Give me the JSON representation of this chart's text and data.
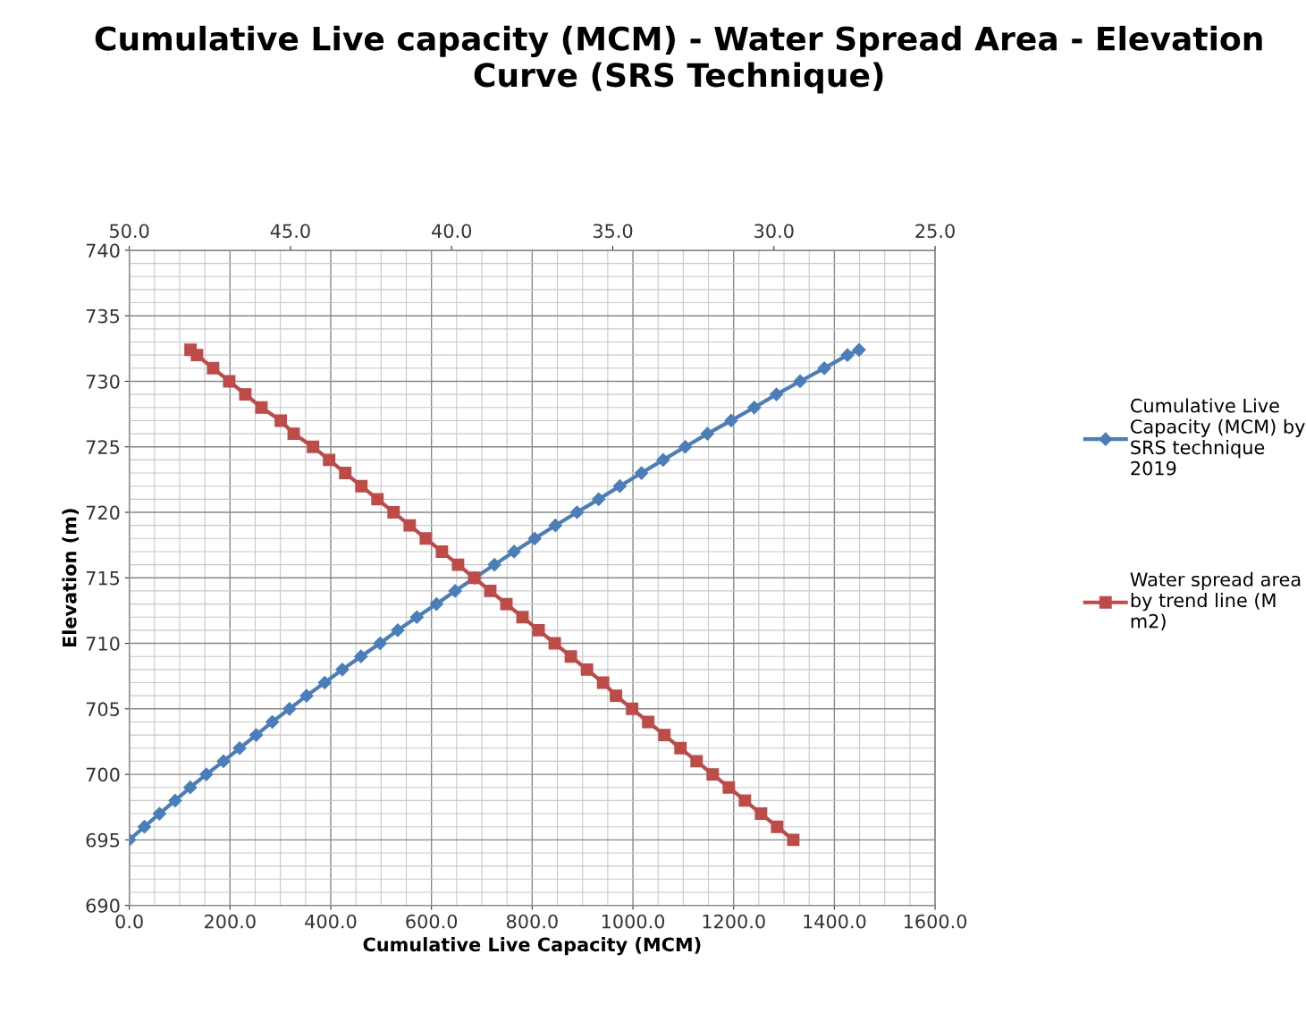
{
  "chart_data": {
    "type": "line",
    "title": "Cumulative Live capacity (MCM) - Water Spread Area - Elevation Curve (SRS Technique)",
    "xlabel": "Cumulative Live Capacity (MCM)",
    "ylabel": "Elevation (m)",
    "xlim": [
      0,
      1600
    ],
    "xticks": [
      {
        "value": 0,
        "label": "0.0"
      },
      {
        "value": 200,
        "label": "200.0"
      },
      {
        "value": 400,
        "label": "400.0"
      },
      {
        "value": 600,
        "label": "600.0"
      },
      {
        "value": 800,
        "label": "800.0"
      },
      {
        "value": 1000,
        "label": "1000.0"
      },
      {
        "value": 1200,
        "label": "1200.0"
      },
      {
        "value": 1400,
        "label": "1400.0"
      },
      {
        "value": 1600,
        "label": "1600.0"
      }
    ],
    "x2lim": [
      50,
      25
    ],
    "x2ticks": [
      {
        "value": 50,
        "label": "50.0"
      },
      {
        "value": 45,
        "label": "45.0"
      },
      {
        "value": 40,
        "label": "40.0"
      },
      {
        "value": 35,
        "label": "35.0"
      },
      {
        "value": 30,
        "label": "30.0"
      },
      {
        "value": 25,
        "label": "25.0"
      }
    ],
    "ylim": [
      690,
      740
    ],
    "yticks": [
      690,
      695,
      700,
      705,
      710,
      715,
      720,
      725,
      730,
      735,
      740
    ],
    "grid": true,
    "legend": "right",
    "line_style": "solid",
    "series": [
      {
        "name": "Cumulative Live Capacity (MCM) by SRS technique 2019",
        "color": "#4a7ebb",
        "marker": "diamond",
        "x": [
          0,
          30,
          60,
          91,
          121,
          153,
          187,
          219,
          252,
          284,
          318,
          352,
          388,
          423,
          460,
          498,
          533,
          571,
          610,
          647,
          686,
          725,
          764,
          805,
          846,
          889,
          932,
          974,
          1017,
          1060,
          1104,
          1148,
          1195,
          1241,
          1285,
          1332,
          1380,
          1426,
          1449
        ],
        "values": [
          695,
          696,
          697,
          698,
          699,
          700,
          701,
          702,
          703,
          704,
          705,
          706,
          707,
          708,
          709,
          710,
          711,
          712,
          713,
          714,
          715,
          716,
          717,
          718,
          719,
          720,
          721,
          722,
          723,
          724,
          725,
          726,
          727,
          728,
          729,
          730,
          731,
          732,
          732.4
        ]
      },
      {
        "name": "Water spread area by trend line (M m2)",
        "color": "#be4b48",
        "marker": "square",
        "axis": "x2",
        "x": [
          48.1,
          47.9,
          47.4,
          46.9,
          46.4,
          45.9,
          45.3,
          44.9,
          44.3,
          43.8,
          43.3,
          42.8,
          42.3,
          41.8,
          41.3,
          40.8,
          40.3,
          39.8,
          39.3,
          38.8,
          38.3,
          37.8,
          37.3,
          36.8,
          36.3,
          35.8,
          35.3,
          34.9,
          34.4,
          33.9,
          33.4,
          32.9,
          32.4,
          31.9,
          31.4,
          30.9,
          30.4,
          29.9,
          29.4
        ],
        "values": [
          732.4,
          732,
          731,
          730,
          729,
          728,
          727,
          726,
          725,
          724,
          723,
          722,
          721,
          720,
          719,
          718,
          717,
          716,
          715,
          714,
          713,
          712,
          711,
          710,
          709,
          708,
          707,
          706,
          705,
          704,
          703,
          702,
          701,
          700,
          699,
          698,
          697,
          696,
          695
        ]
      }
    ]
  }
}
